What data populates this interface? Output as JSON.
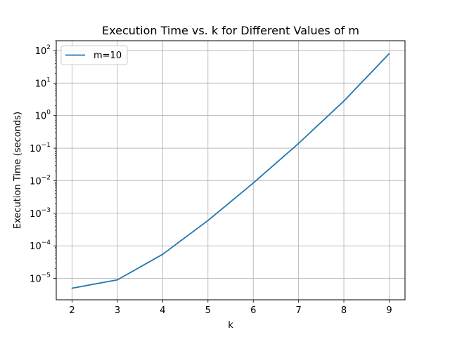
{
  "chart_data": {
    "type": "line",
    "title": "Execution Time vs. k for Different Values of m",
    "xlabel": "k",
    "ylabel": "Execution Time (seconds)",
    "yscale": "log",
    "grid": true,
    "legend_position": "top-left",
    "xlim": [
      1.65,
      9.35
    ],
    "ylim": [
      2.2e-06,
      200
    ],
    "x_ticks": [
      2,
      3,
      4,
      5,
      6,
      7,
      8,
      9
    ],
    "y_tick_base": "10",
    "y_tick_exponents": [
      "−5",
      "−4",
      "−3",
      "−2",
      "−1",
      "0",
      "1",
      "2"
    ],
    "series": [
      {
        "name": "m=10",
        "color": "#1f77b4",
        "x": [
          2,
          3,
          4,
          5,
          6,
          7,
          8,
          9
        ],
        "y": [
          5e-06,
          9e-06,
          5.5e-05,
          0.0006,
          0.0085,
          0.14,
          2.8,
          80
        ]
      }
    ]
  }
}
